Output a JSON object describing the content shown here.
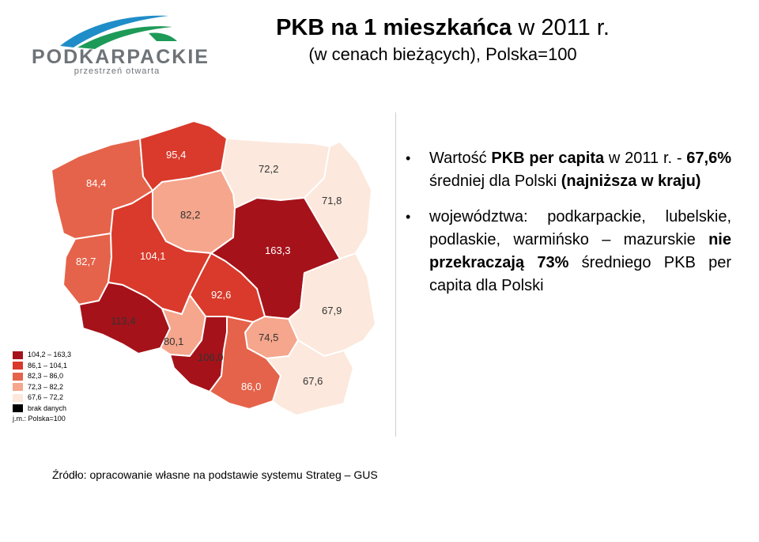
{
  "logo": {
    "name": "PODKARPACKIE",
    "tagline": "przestrzeń otwarta",
    "colors": {
      "green": "#1e9a58",
      "blue": "#1f8dc8",
      "grey": "#6e7378"
    }
  },
  "title": {
    "bold": "PKB na 1 mieszkańca",
    "rest": " w 2011 r.",
    "subtitle": "(w cenach bieżących), Polska=100"
  },
  "bullets": [
    {
      "parts": [
        {
          "text": "Wartość ",
          "bold": false
        },
        {
          "text": "PKB per capita",
          "bold": true
        },
        {
          "text": " w 2011 r. - ",
          "bold": false
        },
        {
          "text": "67,6%",
          "bold": true
        },
        {
          "text": " średniej dla Polski ",
          "bold": false
        },
        {
          "text": "(najniższa w kraju)",
          "bold": true
        }
      ]
    },
    {
      "parts": [
        {
          "text": "województwa: podkarpackie, lubelskie, podlaskie, warmińsko – mazurskie ",
          "bold": false
        },
        {
          "text": "nie przekraczają 73%",
          "bold": true
        },
        {
          "text": " średniego PKB per capita dla Polski",
          "bold": false
        }
      ]
    }
  ],
  "map": {
    "regions": [
      {
        "id": "zachodniopomorskie",
        "value": "84,4",
        "fill": "#e5634a"
      },
      {
        "id": "pomorskie",
        "value": "95,4",
        "fill": "#d93a2b"
      },
      {
        "id": "warminsko-mazurskie",
        "value": "72,2",
        "fill": "#fce8dc"
      },
      {
        "id": "podlaskie",
        "value": "71,8",
        "fill": "#fce8dc"
      },
      {
        "id": "kujawsko-pomorskie",
        "value": "82,2",
        "fill": "#f5a68c"
      },
      {
        "id": "lubuskie",
        "value": "82,7",
        "fill": "#e5634a"
      },
      {
        "id": "wielkopolskie",
        "value": "104,1",
        "fill": "#d93a2b"
      },
      {
        "id": "mazowieckie",
        "value": "163,3",
        "fill": "#a5121a"
      },
      {
        "id": "lodzkie",
        "value": "92,6",
        "fill": "#d93a2b"
      },
      {
        "id": "lubelskie",
        "value": "67,9",
        "fill": "#fce8dc"
      },
      {
        "id": "dolnoslaskie",
        "value": "113,4",
        "fill": "#a5121a"
      },
      {
        "id": "opolskie",
        "value": "80,1",
        "fill": "#f5a68c"
      },
      {
        "id": "swietokrzyskie",
        "value": "74,5",
        "fill": "#f5a68c"
      },
      {
        "id": "slaskie",
        "value": "106,0",
        "fill": "#a5121a"
      },
      {
        "id": "malopolskie",
        "value": "86,0",
        "fill": "#e5634a"
      },
      {
        "id": "podkarpackie",
        "value": "67,6",
        "fill": "#fce8dc"
      }
    ]
  },
  "legend": {
    "items": [
      {
        "label": "104,2 – 163,3",
        "color": "#a5121a"
      },
      {
        "label": "86,1 – 104,1",
        "color": "#d93a2b"
      },
      {
        "label": "82,3 – 86,0",
        "color": "#e5634a"
      },
      {
        "label": "72,3 – 82,2",
        "color": "#f5a68c"
      },
      {
        "label": "67,6 – 72,2",
        "color": "#fce8dc"
      },
      {
        "label": "brak danych",
        "color": "#000000"
      }
    ],
    "unit": "j.m.: Polska=100"
  },
  "source": "Źródło: opracowanie własne na podstawie systemu Strateg – GUS"
}
